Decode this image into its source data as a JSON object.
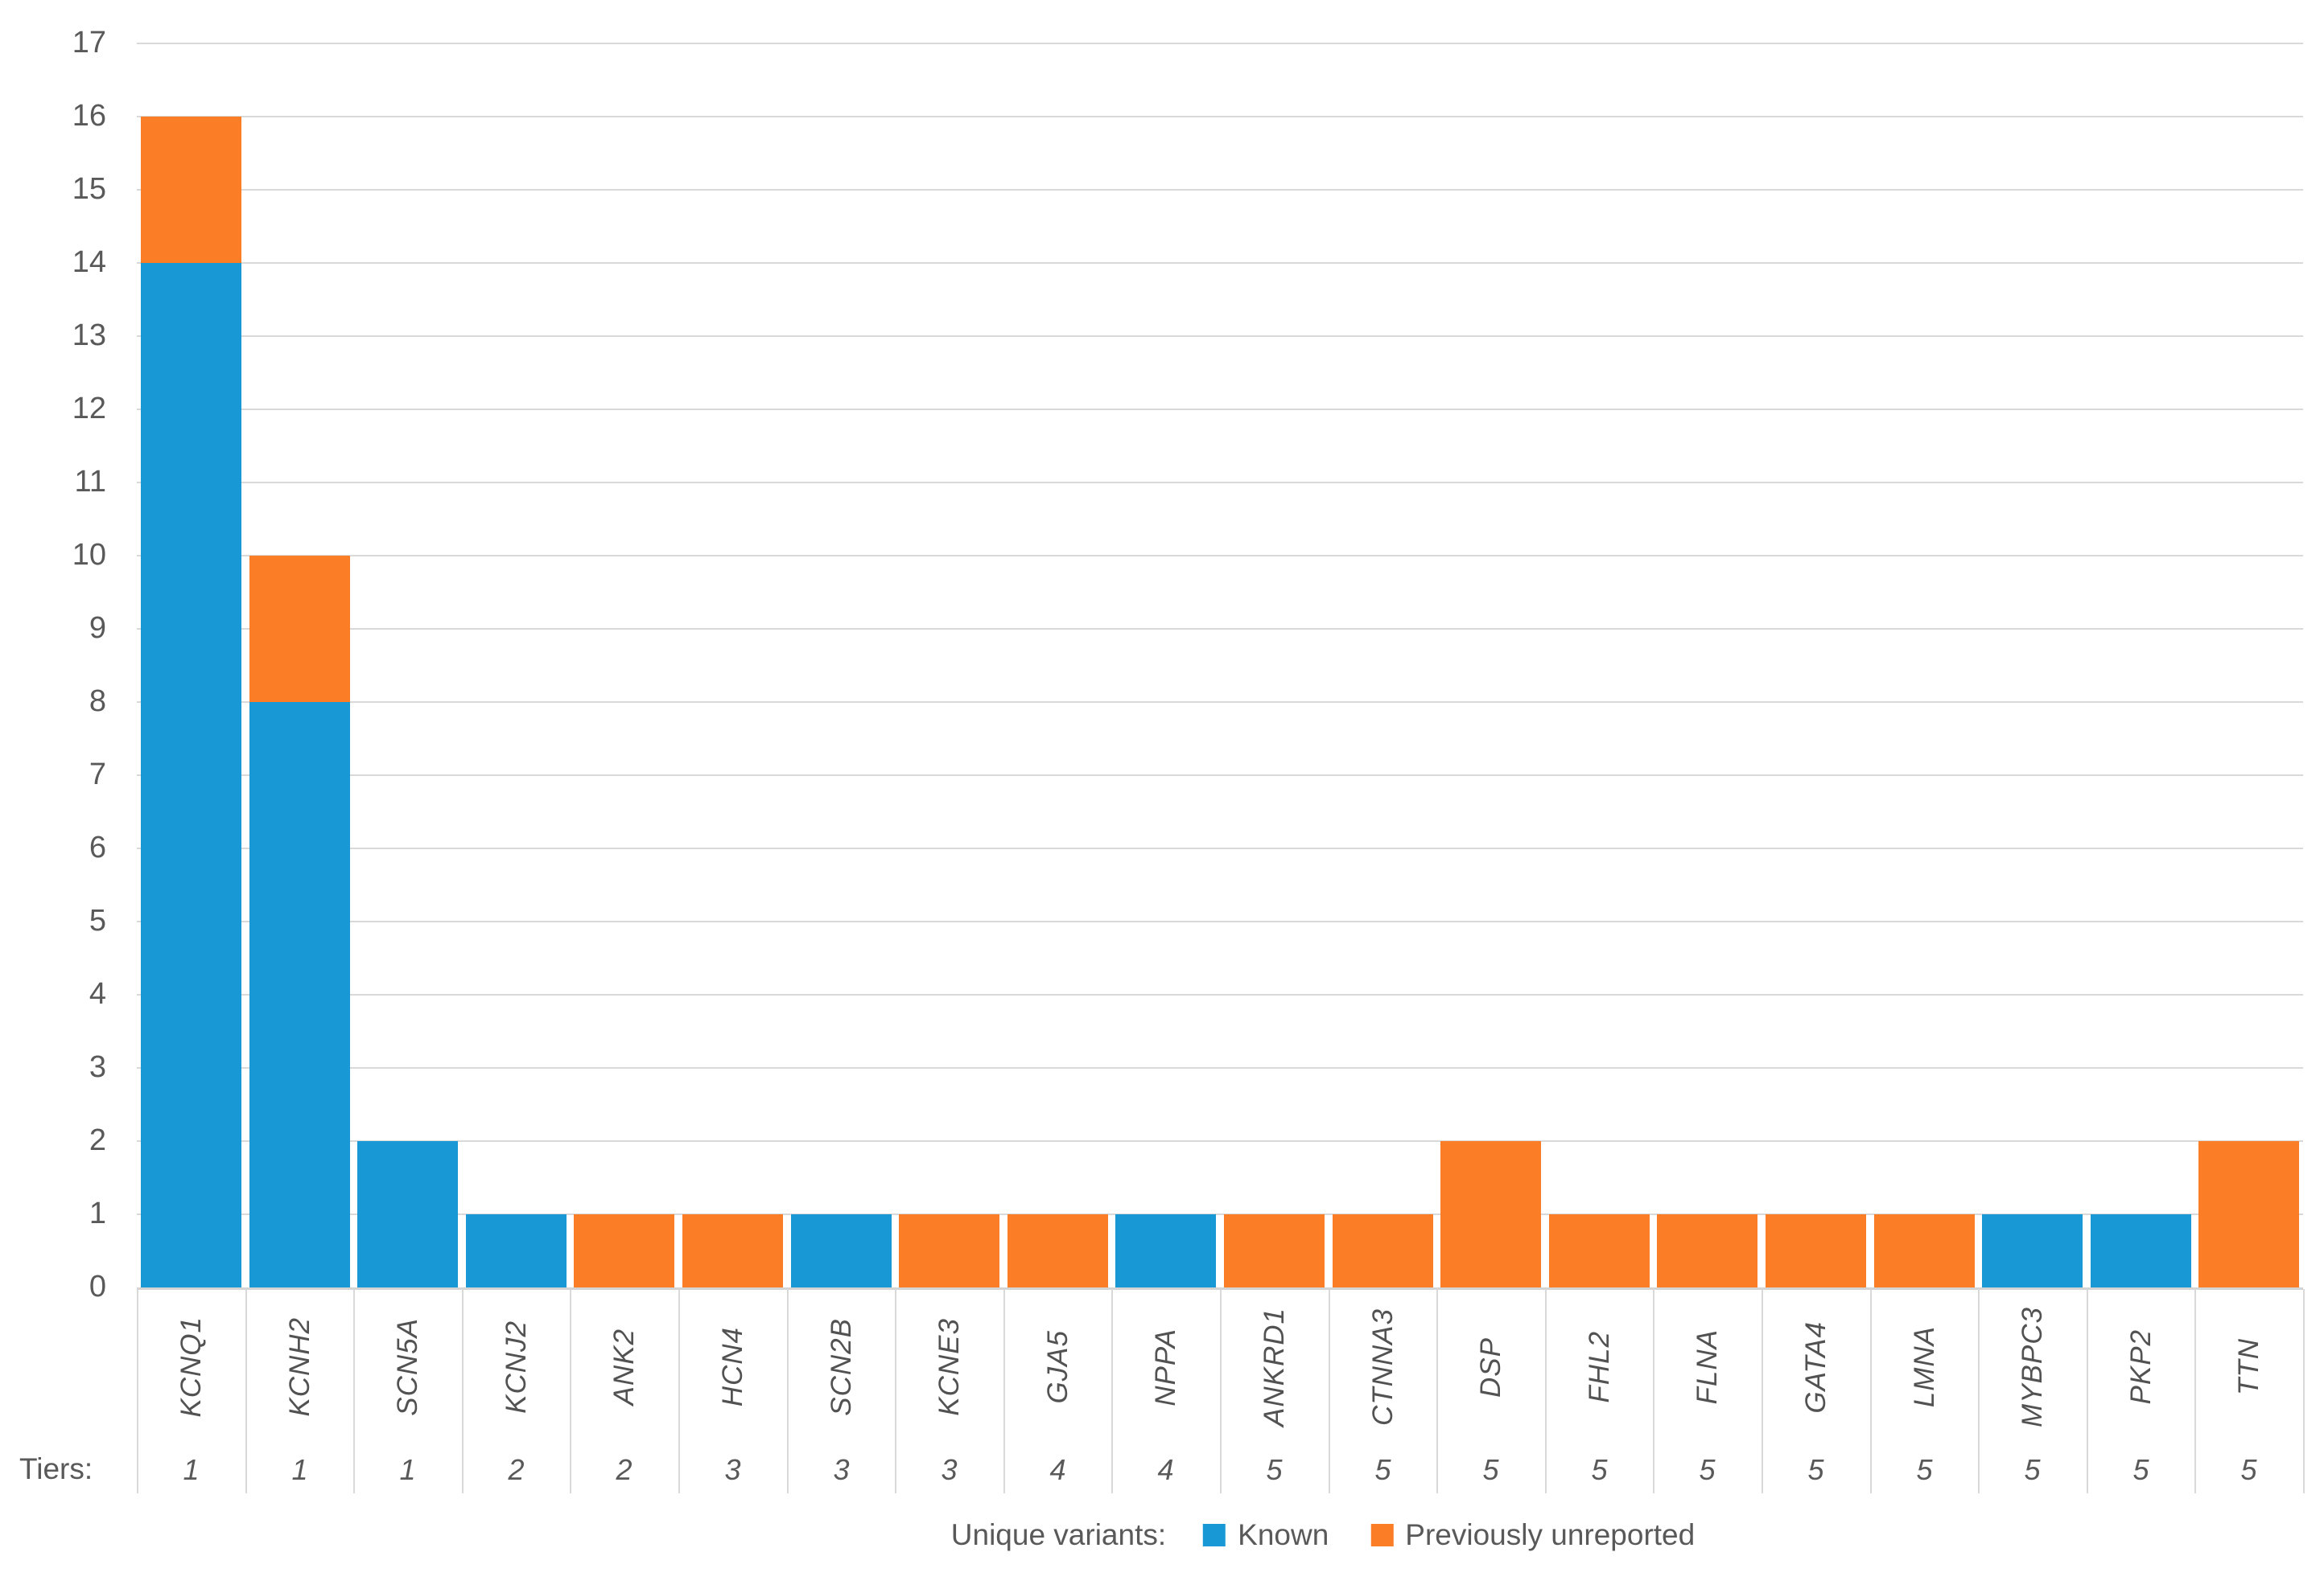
{
  "chart_data": {
    "type": "bar",
    "stacked": true,
    "title": "",
    "categories": [
      "KCNQ1",
      "KCNH2",
      "SCN5A",
      "KCNJ2",
      "ANK2",
      "HCN4",
      "SCN2B",
      "KCNE3",
      "GJA5",
      "NPPA",
      "ANKRD1",
      "CTNNA3",
      "DSP",
      "FHL2",
      "FLNA",
      "GATA4",
      "LMNA",
      "MYBPC3",
      "PKP2",
      "TTN"
    ],
    "tiers": [
      "1",
      "1",
      "1",
      "2",
      "2",
      "3",
      "3",
      "3",
      "4",
      "4",
      "5",
      "5",
      "5",
      "5",
      "5",
      "5",
      "5",
      "5",
      "5",
      "5"
    ],
    "tiers_label": "Tiers:",
    "series": [
      {
        "name": "Known",
        "color": "#1899d6",
        "values": [
          14,
          8,
          2,
          1,
          0,
          0,
          1,
          0,
          0,
          1,
          0,
          0,
          0,
          0,
          0,
          0,
          0,
          1,
          1,
          0
        ]
      },
      {
        "name": "Previously unreported",
        "color": "#fb7d26",
        "values": [
          2,
          2,
          0,
          0,
          1,
          1,
          0,
          1,
          1,
          0,
          1,
          1,
          2,
          1,
          1,
          1,
          1,
          0,
          0,
          2
        ]
      }
    ],
    "ylim": [
      0,
      17
    ],
    "ytick_step": 1,
    "grid": true,
    "legend_title": "Unique variants:",
    "legend_position": "bottom",
    "colors": {
      "known": "#1899d6",
      "unreported": "#fb7d26",
      "gridline": "#d9d9d9",
      "axis_text": "#595959"
    }
  }
}
